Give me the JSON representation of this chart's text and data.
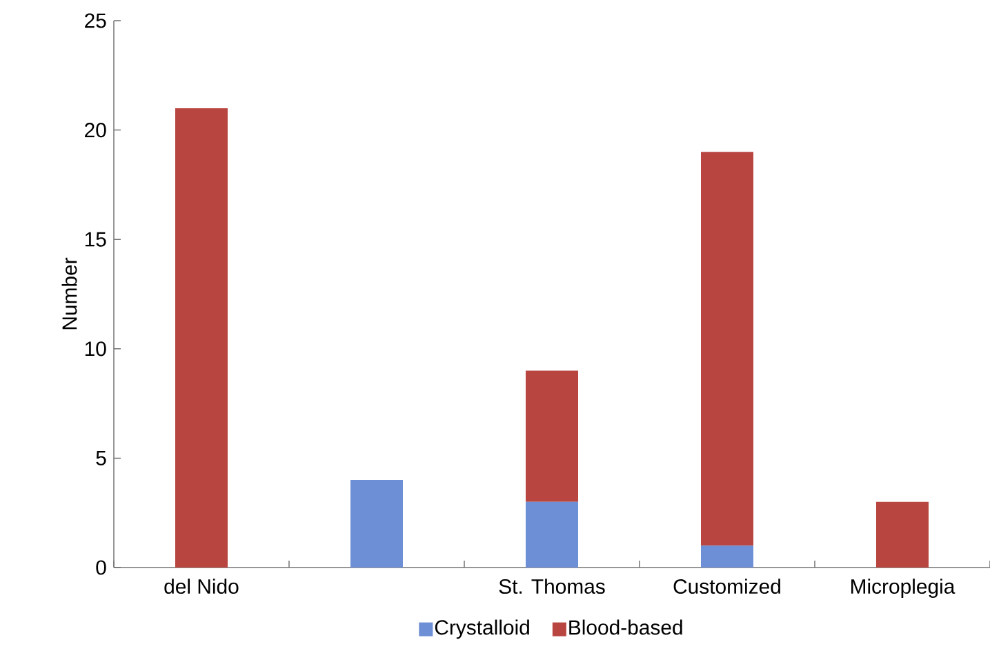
{
  "chart_data": {
    "type": "bar",
    "stacked": true,
    "ylabel": "Number",
    "categories": [
      "del Nido",
      null,
      "St. Thomas",
      "Customized",
      "Microplegia"
    ],
    "series": [
      {
        "name": "Crystalloid",
        "color": "#6d8fd6",
        "values": [
          0,
          4,
          3,
          1,
          0
        ]
      },
      {
        "name": "Blood-based",
        "color": "#b8453f",
        "values": [
          21,
          0,
          6,
          18,
          3
        ]
      }
    ],
    "ylim": [
      0,
      25
    ],
    "yticks": [
      0,
      5,
      10,
      15,
      20,
      25
    ],
    "legend": "bottom"
  }
}
